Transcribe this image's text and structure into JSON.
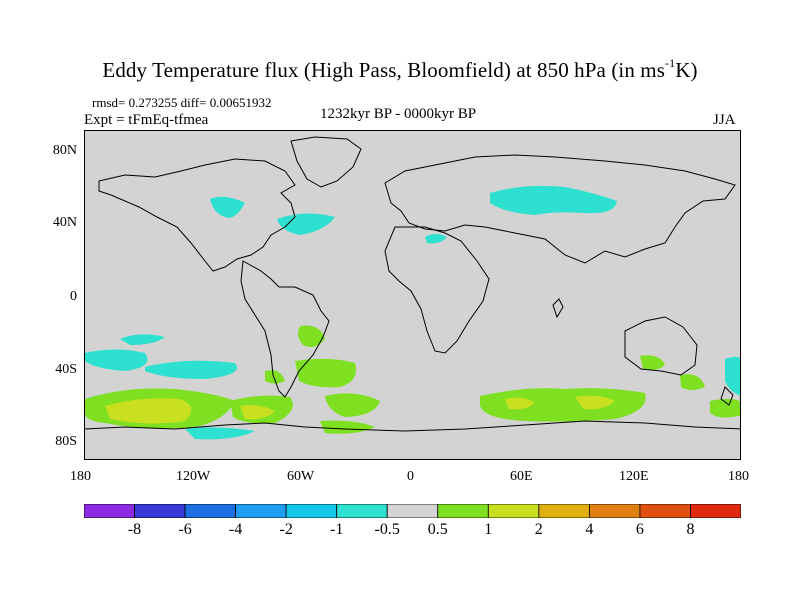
{
  "title": {
    "main": "Eddy Temperature flux (High Pass, Bloomfield) at 850 hPa (in ms",
    "superscript": "-1",
    "suffix": "K)"
  },
  "stats": {
    "rmsd_diff": "rmsd= 0.273255 diff= 0.00651932",
    "experiment": "Expt = tFmEq-tfmea",
    "period": "1232kyr BP - 0000kyr BP",
    "season": "JJA"
  },
  "axes": {
    "lat_labels": [
      "80N",
      "40N",
      "0",
      "40S",
      "80S"
    ],
    "lon_labels": [
      "180",
      "120W",
      "60W",
      "0",
      "60E",
      "120E",
      "180"
    ]
  },
  "colorbar": {
    "labels": [
      "-8",
      "-6",
      "-4",
      "-2",
      "-1",
      "-0.5",
      "0.5",
      "1",
      "2",
      "4",
      "6",
      "8"
    ],
    "colors": [
      "#8a2be2",
      "#3a3ad6",
      "#1e6fe0",
      "#1e9ef0",
      "#14c8e8",
      "#2ee0d0",
      "#d3d3d3",
      "#7ee020",
      "#c8e020",
      "#e0b010",
      "#e08010",
      "#e05010",
      "#e02a10"
    ]
  },
  "colors": {
    "ocean_land_neutral": "#d3d3d3",
    "negative_small": "#2ee0d0",
    "positive_small": "#7ee020",
    "positive_medium": "#c8e020"
  }
}
